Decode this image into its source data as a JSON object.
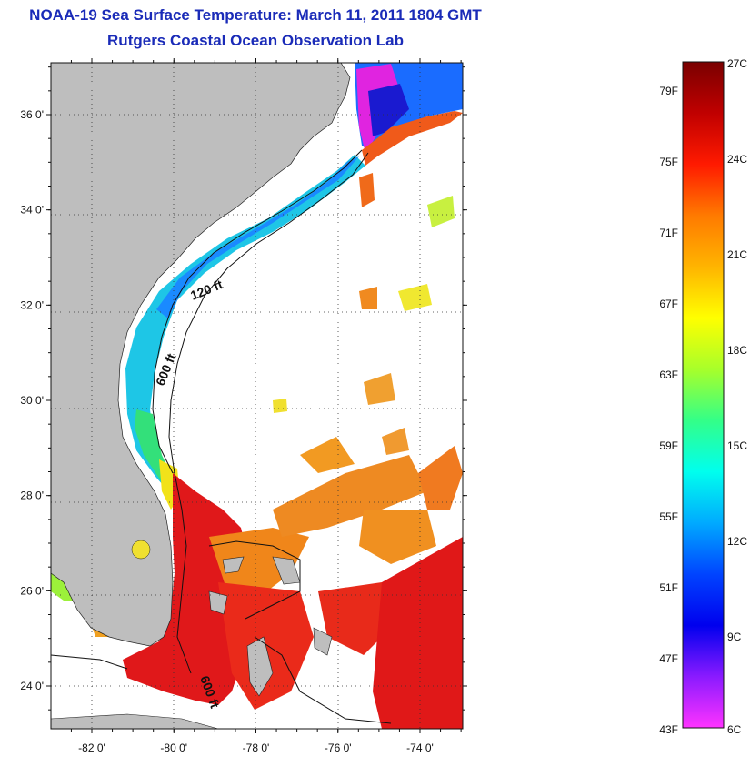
{
  "title": {
    "line1": "NOAA-19 Sea Surface Temperature:  March 11, 2011 1804 GMT",
    "line2": "Rutgers Coastal Ocean Observation Lab"
  },
  "map": {
    "lat_ticks": [
      {
        "value": 36,
        "label": "36 0'"
      },
      {
        "value": 34,
        "label": "34 0'"
      },
      {
        "value": 32,
        "label": "32 0'"
      },
      {
        "value": 30,
        "label": "30 0'"
      },
      {
        "value": 28,
        "label": "28 0'"
      },
      {
        "value": 26,
        "label": "26 0'"
      },
      {
        "value": 24,
        "label": "24 0'"
      }
    ],
    "lon_ticks": [
      {
        "value": -82,
        "label": "-82 0'"
      },
      {
        "value": -80,
        "label": "-80 0'"
      },
      {
        "value": -78,
        "label": "-78 0'"
      },
      {
        "value": -76,
        "label": "-76 0'"
      },
      {
        "value": -74,
        "label": "-74 0'"
      }
    ],
    "isobath_labels": {
      "a": "120 ft",
      "b": "600 ft",
      "c": "600 ft"
    },
    "land_color": "#bebebe"
  },
  "colorbar": {
    "fahrenheit": [
      "79F",
      "75F",
      "71F",
      "67F",
      "63F",
      "59F",
      "55F",
      "51F",
      "47F",
      "43F"
    ],
    "celsius": [
      "27C",
      "24C",
      "21C",
      "18C",
      "15C",
      "12C",
      "9C",
      "6C"
    ],
    "colors": [
      "#7a0000",
      "#c00000",
      "#ff1a00",
      "#ff7a00",
      "#ffb400",
      "#ffff00",
      "#a8ff2a",
      "#33ff88",
      "#00ffee",
      "#00aaff",
      "#0044ff",
      "#0000ee",
      "#8a1aff",
      "#ff33ff"
    ]
  }
}
